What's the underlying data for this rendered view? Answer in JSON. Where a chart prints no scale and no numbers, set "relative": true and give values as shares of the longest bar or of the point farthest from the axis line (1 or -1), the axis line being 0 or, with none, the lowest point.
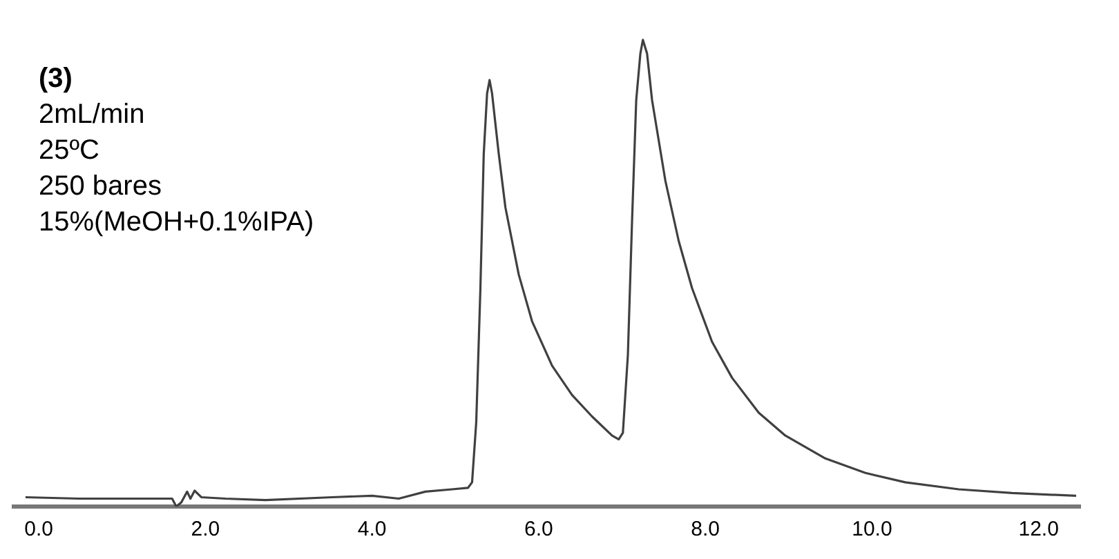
{
  "chart_data": {
    "type": "line",
    "relative": true,
    "title": "(3)",
    "annotations": [
      "2mL/min",
      "25ºC",
      "250 bares",
      "15%(MeOH+0.1%IPA)"
    ],
    "x": [
      -0.16,
      0.48,
      1.6,
      1.65,
      1.71,
      1.78,
      1.82,
      1.87,
      1.95,
      2.24,
      2.72,
      3.52,
      4.0,
      4.32,
      4.64,
      4.96,
      5.15,
      5.2,
      5.25,
      5.3,
      5.34,
      5.38,
      5.41,
      5.44,
      5.52,
      5.6,
      5.76,
      5.92,
      6.16,
      6.4,
      6.64,
      6.88,
      6.96,
      7.01,
      7.07,
      7.12,
      7.17,
      7.22,
      7.25,
      7.3,
      7.36,
      7.52,
      7.68,
      7.84,
      8.08,
      8.32,
      8.64,
      8.96,
      9.44,
      9.92,
      10.4,
      11.04,
      11.68,
      12.45
    ],
    "series": [
      {
        "color": "#404040",
        "values": [
          0.02,
          0.017,
          0.017,
          0,
          0.009,
          0.032,
          0.017,
          0.034,
          0.02,
          0.017,
          0.014,
          0.02,
          0.023,
          0.017,
          0.032,
          0.037,
          0.04,
          0.052,
          0.181,
          0.468,
          0.756,
          0.885,
          0.914,
          0.885,
          0.756,
          0.641,
          0.497,
          0.397,
          0.302,
          0.239,
          0.193,
          0.152,
          0.144,
          0.158,
          0.325,
          0.612,
          0.871,
          0.971,
          1,
          0.971,
          0.871,
          0.698,
          0.569,
          0.468,
          0.353,
          0.276,
          0.201,
          0.152,
          0.103,
          0.072,
          0.052,
          0.037,
          0.029,
          0.023
        ]
      }
    ],
    "xlim": [
      -0.3,
      12.5
    ],
    "xticks": [
      {
        "value": 0,
        "label": "0.0"
      },
      {
        "value": 2,
        "label": "2.0"
      },
      {
        "value": 4,
        "label": "4.0"
      },
      {
        "value": 6,
        "label": "6.0"
      },
      {
        "value": 8,
        "label": "8.0"
      },
      {
        "value": 10,
        "label": "10.0"
      },
      {
        "value": 12,
        "label": "12.0"
      }
    ],
    "grid": false,
    "legend": false,
    "marker": "none",
    "line_style": "solid",
    "tick_labels": "x"
  }
}
